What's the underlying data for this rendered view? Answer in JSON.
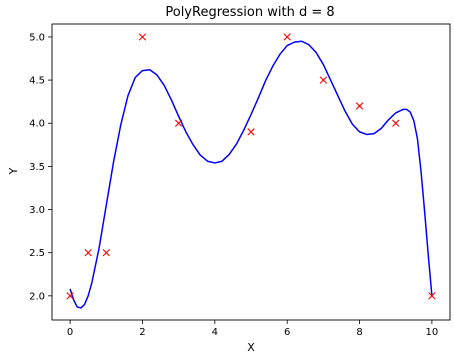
{
  "chart_data": {
    "type": "scatter",
    "title": "PolyRegression with d = 8",
    "xlabel": "X",
    "ylabel": "Y",
    "xlim": [
      -0.5,
      10.5
    ],
    "ylim": [
      1.72,
      5.15
    ],
    "xticks": [
      0,
      2,
      4,
      6,
      8,
      10
    ],
    "xtick_labels": [
      "0",
      "2",
      "4",
      "6",
      "8",
      "10"
    ],
    "yticks": [
      2.0,
      2.5,
      3.0,
      3.5,
      4.0,
      4.5,
      5.0
    ],
    "ytick_labels": [
      "2.0",
      "2.5",
      "3.0",
      "3.5",
      "4.0",
      "4.5",
      "5.0"
    ],
    "grid": false,
    "series": [
      {
        "kind": "scatter",
        "marker": "x",
        "color": "#ff0000",
        "x": [
          0,
          0.5,
          1,
          2,
          3,
          5,
          6,
          7,
          8,
          9,
          10
        ],
        "y": [
          2.0,
          2.5,
          2.5,
          5.0,
          4.0,
          3.9,
          5.0,
          4.5,
          4.2,
          4.0,
          2.0
        ]
      },
      {
        "kind": "line",
        "color": "#0000ff",
        "x": [
          0,
          0.1,
          0.2,
          0.3,
          0.4,
          0.5,
          0.6,
          0.8,
          1.0,
          1.2,
          1.4,
          1.6,
          1.8,
          2.0,
          2.2,
          2.4,
          2.6,
          2.8,
          3.0,
          3.2,
          3.4,
          3.6,
          3.8,
          4.0,
          4.2,
          4.4,
          4.6,
          4.8,
          5.0,
          5.2,
          5.4,
          5.6,
          5.8,
          6.0,
          6.2,
          6.4,
          6.6,
          6.8,
          7.0,
          7.2,
          7.4,
          7.6,
          7.8,
          8.0,
          8.2,
          8.4,
          8.6,
          8.8,
          9.0,
          9.2,
          9.3,
          9.4,
          9.5,
          9.6,
          9.7,
          9.8,
          9.9,
          10.0
        ],
        "y": [
          2.08,
          1.95,
          1.87,
          1.86,
          1.9,
          2.0,
          2.15,
          2.55,
          3.05,
          3.55,
          3.98,
          4.32,
          4.53,
          4.61,
          4.62,
          4.56,
          4.44,
          4.27,
          4.08,
          3.9,
          3.75,
          3.63,
          3.56,
          3.54,
          3.56,
          3.64,
          3.76,
          3.92,
          4.1,
          4.29,
          4.49,
          4.66,
          4.8,
          4.9,
          4.94,
          4.95,
          4.91,
          4.82,
          4.68,
          4.5,
          4.32,
          4.14,
          3.99,
          3.9,
          3.87,
          3.88,
          3.94,
          4.04,
          4.12,
          4.16,
          4.16,
          4.13,
          4.03,
          3.82,
          3.44,
          2.97,
          2.47,
          2.0
        ]
      }
    ]
  }
}
